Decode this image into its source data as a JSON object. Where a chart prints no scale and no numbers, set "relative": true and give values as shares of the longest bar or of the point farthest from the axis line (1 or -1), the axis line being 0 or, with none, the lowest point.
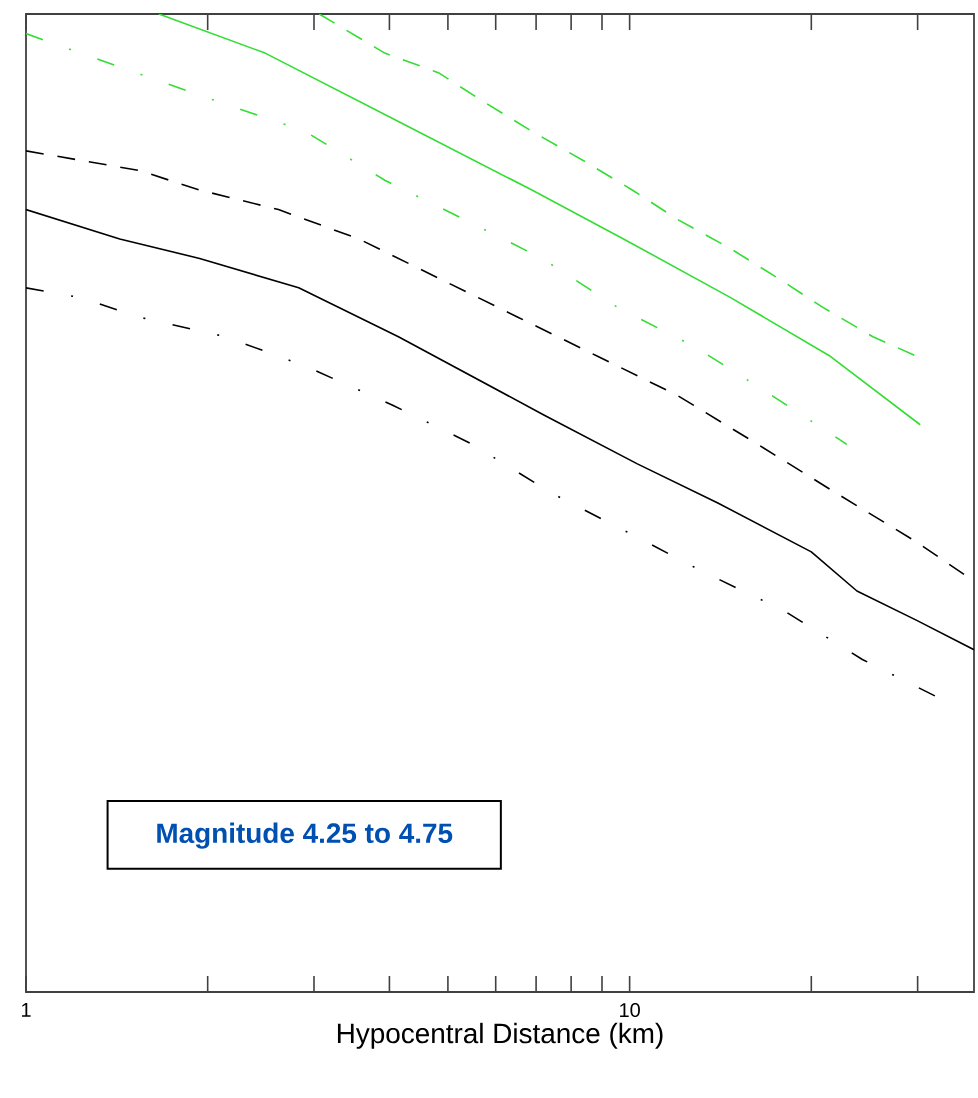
{
  "chart_data": {
    "type": "line",
    "relative": true,
    "xlabel": "Hypocentral Distance (km)",
    "log": "x",
    "grid": false,
    "marker": "none",
    "xlim": [
      1,
      37.2
    ],
    "xticks": [
      1,
      {
        "value": 2,
        "label": null
      },
      {
        "value": 3,
        "label": null
      },
      {
        "value": 4,
        "label": null
      },
      {
        "value": 5,
        "label": null
      },
      {
        "value": 6,
        "label": null
      },
      {
        "value": 7,
        "label": null
      },
      {
        "value": 8,
        "label": null
      },
      {
        "value": 9,
        "label": null
      },
      10,
      {
        "value": 20,
        "label": null
      },
      {
        "value": 30,
        "label": null
      }
    ],
    "annotations": [
      "Magnitude 4.25 to 4.75"
    ],
    "series": [
      {
        "color": "#000000",
        "line_style": "solid",
        "x": [
          1,
          1.43,
          1.94,
          2.83,
          4.14,
          7.21,
          10.3,
          14.0,
          20.0,
          23.8,
          29.9,
          37.2
        ],
        "values": [
          0.8,
          0.77,
          0.75,
          0.72,
          0.67,
          0.59,
          0.54,
          0.5,
          0.45,
          0.41,
          0.38,
          0.35
        ]
      },
      {
        "color": "#000000",
        "line_style": "dashed",
        "x": [
          1,
          1.54,
          1.94,
          2.62,
          3.56,
          4.82,
          6.53,
          8.85,
          12.0,
          16.3,
          22.0,
          29.9,
          37.2
        ],
        "values": [
          0.86,
          0.84,
          0.82,
          0.8,
          0.77,
          0.73,
          0.69,
          0.65,
          0.61,
          0.56,
          0.51,
          0.46,
          0.42
        ]
      },
      {
        "color": "#000000",
        "line_style": "dashdot",
        "x": [
          1,
          1.23,
          1.54,
          2.14,
          2.9,
          4.05,
          5.49,
          7.43,
          9.93,
          13.2,
          18.0,
          24.3,
          32.7
        ],
        "values": [
          0.72,
          0.71,
          0.69,
          0.67,
          0.64,
          0.6,
          0.56,
          0.51,
          0.47,
          0.43,
          0.39,
          0.34,
          0.3
        ]
      },
      {
        "color": "#33dd33",
        "line_style": "solid",
        "x": [
          1.66,
          2.49,
          4.14,
          6.89,
          9.77,
          14.7,
          21.5,
          30.3
        ],
        "values": [
          1.0,
          0.96,
          0.89,
          0.82,
          0.77,
          0.71,
          0.65,
          0.58
        ]
      },
      {
        "color": "#33dd33",
        "line_style": "dashed",
        "x": [
          3.06,
          3.93,
          4.82,
          5.74,
          6.89,
          8.39,
          10.1,
          12.0,
          14.7,
          17.6,
          20.9,
          25.3,
          29.9
        ],
        "values": [
          1.0,
          0.96,
          0.94,
          0.91,
          0.88,
          0.85,
          0.82,
          0.79,
          0.76,
          0.73,
          0.7,
          0.67,
          0.65
        ]
      },
      {
        "color": "#33dd33",
        "line_style": "dashdot",
        "x": [
          1,
          1.23,
          1.52,
          2.09,
          2.9,
          3.93,
          5.32,
          7.16,
          9.55,
          12.8,
          17.2,
          22.9
        ],
        "values": [
          0.98,
          0.96,
          0.94,
          0.91,
          0.88,
          0.83,
          0.79,
          0.75,
          0.7,
          0.66,
          0.61,
          0.56
        ]
      }
    ]
  }
}
